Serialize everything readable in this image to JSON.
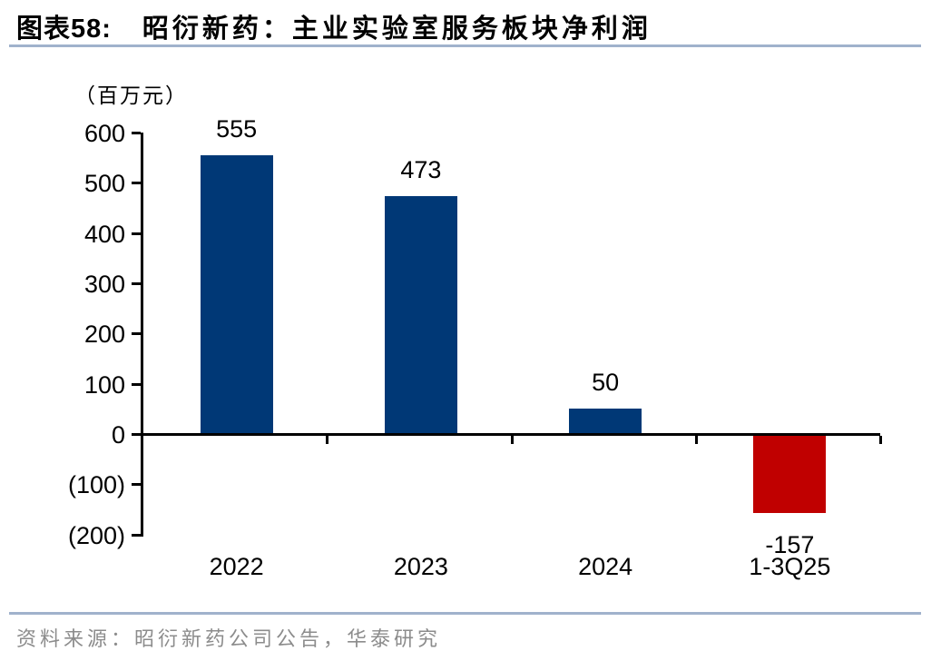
{
  "header": {
    "figure_label": "图表58:",
    "title": "昭衍新药：主业实验室服务板块净利润"
  },
  "chart_data": {
    "type": "bar",
    "title": "昭衍新药：主业实验室服务板块净利润",
    "unit_label": "（百万元）",
    "categories": [
      "2022",
      "2023",
      "2024",
      "1-3Q25"
    ],
    "values": [
      555,
      473,
      50,
      -157
    ],
    "value_labels": [
      "555",
      "473",
      "50",
      "-157"
    ],
    "y_ticks": [
      600,
      500,
      400,
      300,
      200,
      100,
      0,
      -100,
      -200
    ],
    "y_tick_labels": [
      "600",
      "500",
      "400",
      "300",
      "200",
      "100",
      "0",
      "(100)",
      "(200)"
    ],
    "ylim": [
      -200,
      600
    ],
    "xlabel": "",
    "ylabel": "（百万元）",
    "grid": false,
    "legend": null,
    "bar_color_positive": "#003876",
    "bar_color_negative": "#C00000"
  },
  "footer": {
    "source": "资料来源：昭衍新药公司公告，华泰研究"
  },
  "colors": {
    "accent_rule": "#A0B2CC",
    "axis": "#000000",
    "positive_bar": "#003876",
    "negative_bar": "#C00000",
    "source_text": "#8C8C8C"
  }
}
